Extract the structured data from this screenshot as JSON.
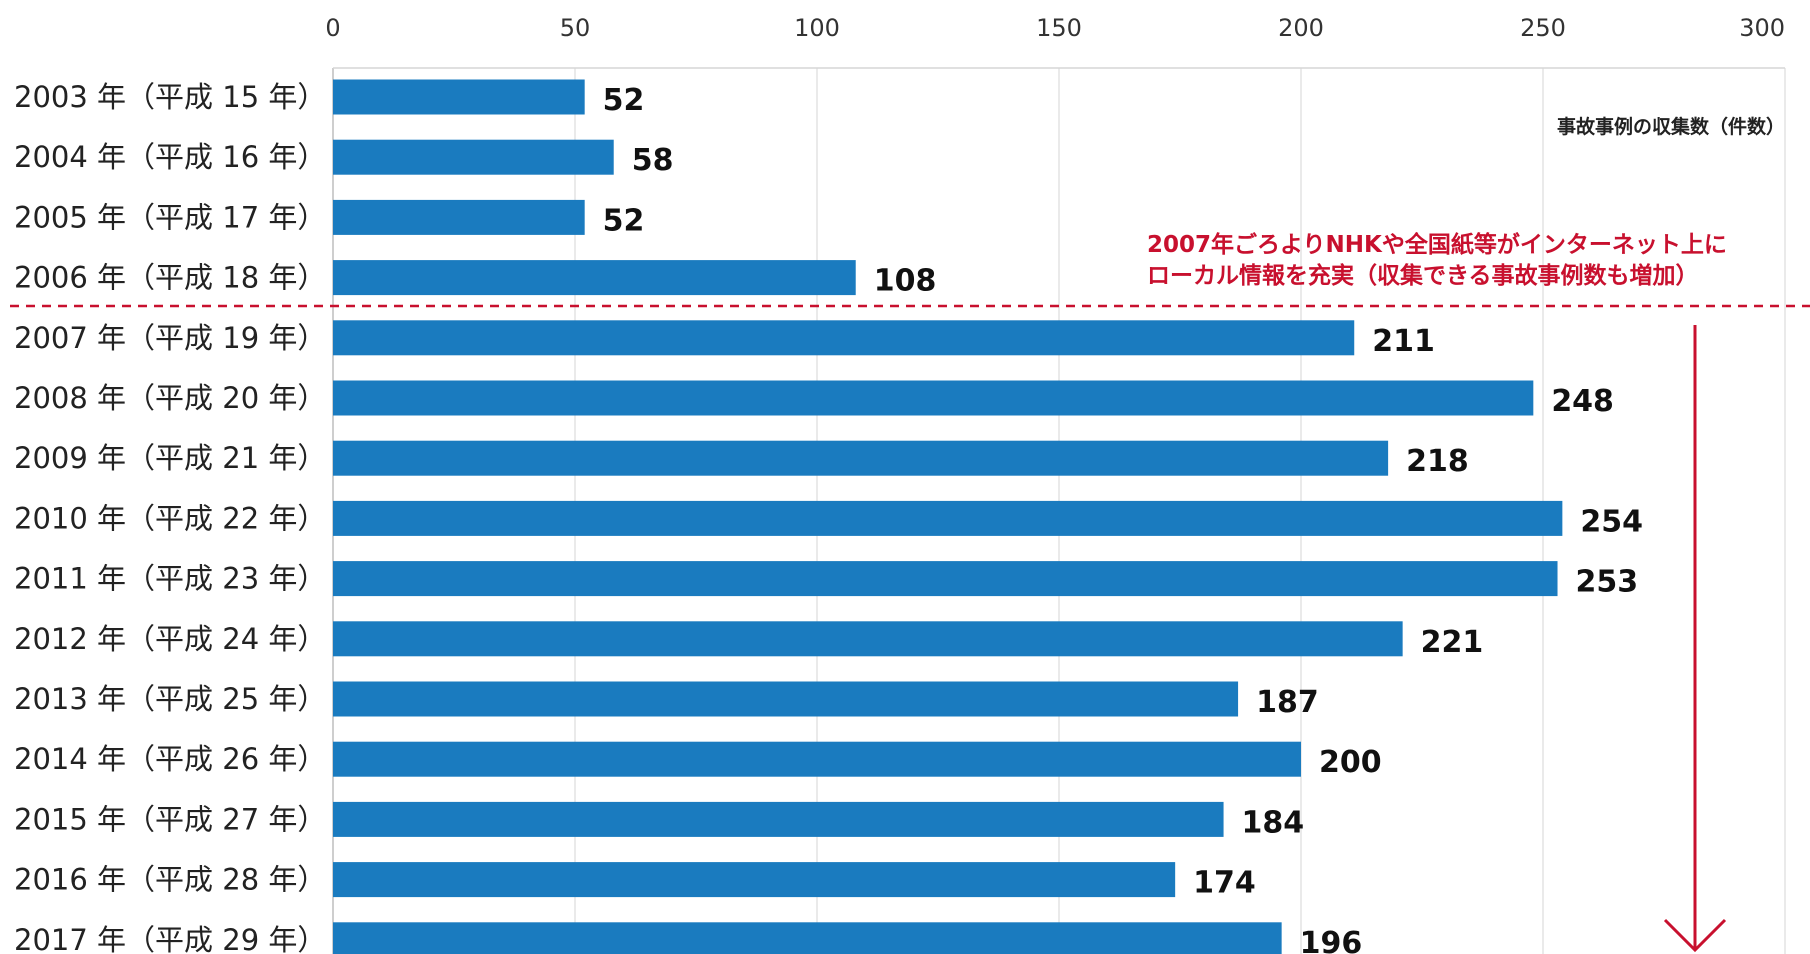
{
  "chart_data": {
    "type": "bar",
    "orientation": "horizontal",
    "categories": [
      "2003 年（平成 15 年）",
      "2004 年（平成 16 年）",
      "2005 年（平成 17 年）",
      "2006 年（平成 18 年）",
      "2007 年（平成 19 年）",
      "2008 年（平成 20 年）",
      "2009 年（平成 21 年）",
      "2010 年（平成 22 年）",
      "2011 年（平成 23 年）",
      "2012 年（平成 24 年）",
      "2013 年（平成 25 年）",
      "2014 年（平成 26 年）",
      "2015 年（平成 27 年）",
      "2016 年（平成 28 年）",
      "2017 年（平成 29 年）"
    ],
    "values": [
      52,
      58,
      52,
      108,
      211,
      248,
      218,
      254,
      253,
      221,
      187,
      200,
      184,
      174,
      196
    ],
    "xlabel": "事故事例の収集数（件数）",
    "xlim": [
      0,
      300
    ],
    "xticks": [
      0,
      50,
      100,
      150,
      200,
      250,
      300
    ],
    "axis_position": "top",
    "grid": true,
    "annotation": {
      "lines": [
        "2007年ごろよりNHKや全国紙等がインターネット上に",
        "ローカル情報を充実（収集できる事故事例数も増加）"
      ],
      "divider_after_category": "2006 年（平成 18 年）"
    },
    "bar_color": "#1a7bbf",
    "annotation_color": "#c8102e"
  }
}
